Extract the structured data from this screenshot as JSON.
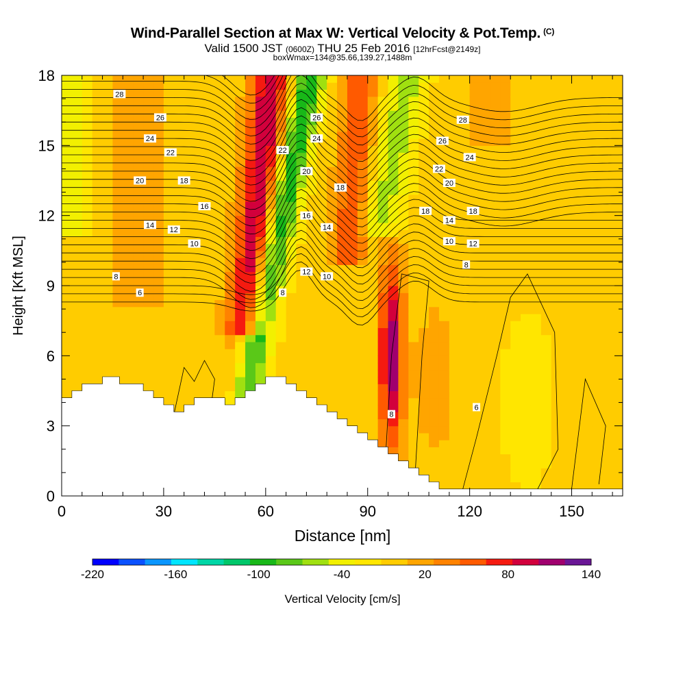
{
  "title": {
    "main": "Wind-Parallel Section at Max W: Vertical Velocity & Pot.Temp.",
    "main_tag": "(C)",
    "sub_valid": "Valid 1500 JST",
    "sub_utc": "(0600Z)",
    "sub_date": "THU 25 Feb 2016",
    "sub_fcst": "[12hrFcst@2149z]",
    "sub3": "boxWmax=134@35.66,139.27,1488m"
  },
  "chart_data": {
    "type": "heatmap",
    "xlabel": "Distance [nm]",
    "ylabel": "Height [Kft MSL]",
    "xlim": [
      0,
      165
    ],
    "ylim": [
      0,
      18
    ],
    "xticks": [
      0,
      30,
      60,
      90,
      120,
      150
    ],
    "yticks": [
      0,
      3,
      6,
      9,
      12,
      15,
      18
    ],
    "colorbar": {
      "label": "Vertical Velocity [cm/s]",
      "ticks": [
        -220,
        -160,
        -100,
        -40,
        20,
        80,
        140
      ],
      "levels": [
        -220,
        -200,
        -180,
        -160,
        -140,
        -120,
        -100,
        -80,
        -60,
        -40,
        -20,
        0,
        20,
        40,
        60,
        80,
        100,
        120,
        140
      ],
      "colors": [
        "#0000ff",
        "#0a50ff",
        "#0a96ff",
        "#00e5ff",
        "#00d6a6",
        "#00c76a",
        "#18b818",
        "#5ac818",
        "#a0e010",
        "#f2f000",
        "#ffe600",
        "#ffcc00",
        "#ffa500",
        "#ff8200",
        "#ff5a00",
        "#f51a10",
        "#d2003c",
        "#a0006e",
        "#6a1696"
      ]
    },
    "theta_contour_labels": [
      {
        "label": "28",
        "x": 17,
        "y": 17.2
      },
      {
        "label": "26",
        "x": 29,
        "y": 16.2
      },
      {
        "label": "24",
        "x": 26,
        "y": 15.3
      },
      {
        "label": "22",
        "x": 32,
        "y": 14.7
      },
      {
        "label": "20",
        "x": 23,
        "y": 13.5
      },
      {
        "label": "18",
        "x": 36,
        "y": 13.5
      },
      {
        "label": "16",
        "x": 42,
        "y": 12.4
      },
      {
        "label": "14",
        "x": 26,
        "y": 11.6
      },
      {
        "label": "12",
        "x": 33,
        "y": 11.4
      },
      {
        "label": "10",
        "x": 39,
        "y": 10.8
      },
      {
        "label": "8",
        "x": 16,
        "y": 9.4
      },
      {
        "label": "6",
        "x": 23,
        "y": 8.7
      },
      {
        "label": "26",
        "x": 75,
        "y": 16.2
      },
      {
        "label": "24",
        "x": 75,
        "y": 15.3
      },
      {
        "label": "22",
        "x": 65,
        "y": 14.8
      },
      {
        "label": "20",
        "x": 72,
        "y": 13.9
      },
      {
        "label": "18",
        "x": 82,
        "y": 13.2
      },
      {
        "label": "16",
        "x": 72,
        "y": 12.0
      },
      {
        "label": "14",
        "x": 78,
        "y": 11.5
      },
      {
        "label": "12",
        "x": 72,
        "y": 9.6
      },
      {
        "label": "10",
        "x": 78,
        "y": 9.4
      },
      {
        "label": "8",
        "x": 65,
        "y": 8.7
      },
      {
        "label": "28",
        "x": 118,
        "y": 16.1
      },
      {
        "label": "26",
        "x": 112,
        "y": 15.2
      },
      {
        "label": "24",
        "x": 120,
        "y": 14.5
      },
      {
        "label": "22",
        "x": 111,
        "y": 14.0
      },
      {
        "label": "20",
        "x": 114,
        "y": 13.4
      },
      {
        "label": "18",
        "x": 107,
        "y": 12.2
      },
      {
        "label": "18",
        "x": 121,
        "y": 12.2
      },
      {
        "label": "14",
        "x": 114,
        "y": 11.8
      },
      {
        "label": "10",
        "x": 114,
        "y": 10.9
      },
      {
        "label": "12",
        "x": 121,
        "y": 10.8
      },
      {
        "label": "8",
        "x": 119,
        "y": 9.9
      },
      {
        "label": "8",
        "x": 97,
        "y": 3.5
      },
      {
        "label": "6",
        "x": 122,
        "y": 3.8
      }
    ]
  }
}
